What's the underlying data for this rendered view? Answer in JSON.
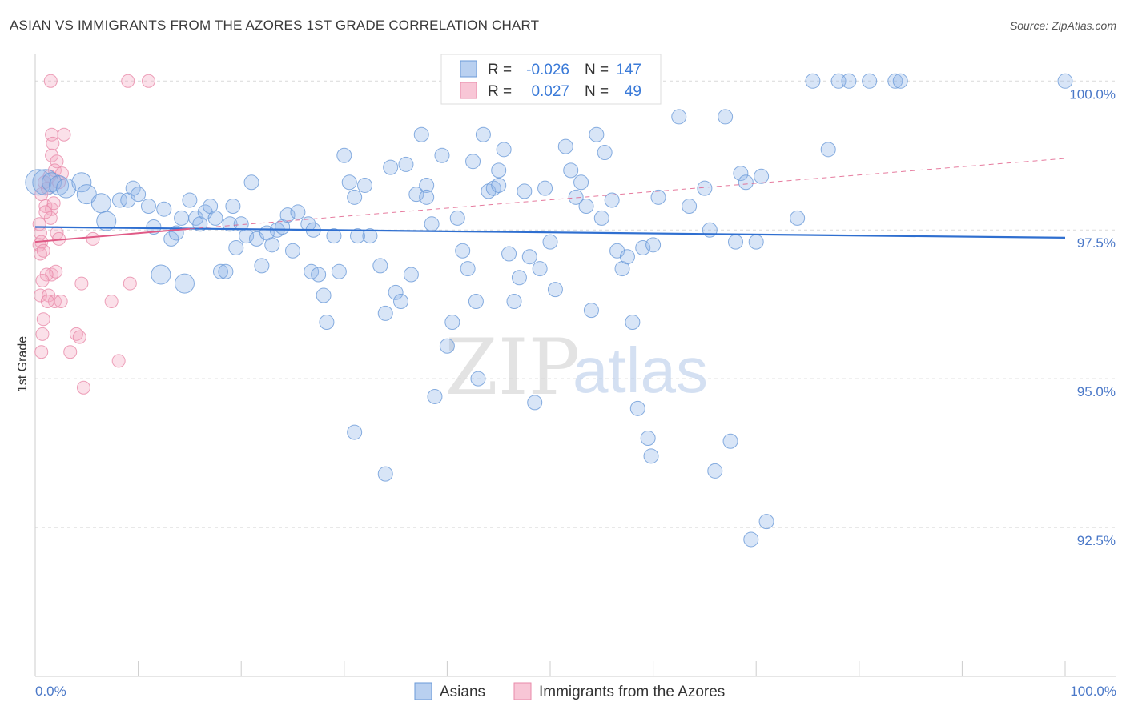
{
  "header": {
    "title": "ASIAN VS IMMIGRANTS FROM THE AZORES 1ST GRADE CORRELATION CHART",
    "source": "Source: ZipAtlas.com"
  },
  "watermark": {
    "zip": "ZIP",
    "atlas": "atlas"
  },
  "chart_data": {
    "type": "scatter",
    "title": "ASIAN VS IMMIGRANTS FROM THE AZORES 1ST GRADE CORRELATION CHART",
    "xlabel": "",
    "ylabel": "1st Grade",
    "xlim": [
      0,
      100
    ],
    "ylim": [
      90.0,
      100.3
    ],
    "x_tick_labels": {
      "left": "0.0%",
      "right": "100.0%"
    },
    "y_ticks": [
      {
        "value": 100.0,
        "label": "100.0%"
      },
      {
        "value": 97.5,
        "label": "97.5%"
      },
      {
        "value": 95.0,
        "label": "95.0%"
      },
      {
        "value": 92.5,
        "label": "92.5%"
      }
    ],
    "stats": [
      {
        "r_label": "R =",
        "r_value": "-0.026",
        "n_label": "N =",
        "n_value": "147"
      },
      {
        "r_label": "R =",
        "r_value": "0.027",
        "n_label": "N =",
        "n_value": "49"
      }
    ],
    "series": [
      {
        "name": "Asians",
        "color": "#8fb4e8",
        "stroke": "#6a9ad8",
        "trend": {
          "x": [
            0,
            100
          ],
          "y": [
            97.55,
            97.37
          ],
          "color": "#2f6fd0",
          "style": "solid"
        },
        "points": [
          [
            0.3,
            98.3,
            3
          ],
          [
            1.0,
            98.3,
            3
          ],
          [
            1.6,
            98.3,
            2
          ],
          [
            2.3,
            98.25,
            2
          ],
          [
            3.0,
            98.2,
            2
          ],
          [
            4.5,
            98.3,
            2
          ],
          [
            5.0,
            98.1,
            2
          ],
          [
            6.4,
            97.95,
            2
          ],
          [
            6.9,
            97.65,
            2
          ],
          [
            8.2,
            98.0,
            1
          ],
          [
            9.0,
            98.0,
            1
          ],
          [
            9.5,
            98.2,
            1
          ],
          [
            10.0,
            98.1,
            1
          ],
          [
            11.0,
            97.9,
            1
          ],
          [
            11.5,
            97.55,
            1
          ],
          [
            12.5,
            97.85,
            1
          ],
          [
            12.2,
            96.75,
            2
          ],
          [
            13.2,
            97.35,
            1
          ],
          [
            13.7,
            97.45,
            1
          ],
          [
            14.2,
            97.7,
            1
          ],
          [
            14.5,
            96.6,
            2
          ],
          [
            15.0,
            98.0,
            1
          ],
          [
            15.6,
            97.7,
            1
          ],
          [
            16.0,
            97.6,
            1
          ],
          [
            16.5,
            97.8,
            1
          ],
          [
            17.0,
            97.9,
            1
          ],
          [
            17.5,
            97.7,
            1
          ],
          [
            18.0,
            96.8,
            1
          ],
          [
            18.5,
            96.8,
            1
          ],
          [
            18.9,
            97.6,
            1
          ],
          [
            19.2,
            97.9,
            1
          ],
          [
            19.5,
            97.2,
            1
          ],
          [
            20.0,
            97.6,
            1
          ],
          [
            20.5,
            97.4,
            1
          ],
          [
            21.0,
            98.3,
            1
          ],
          [
            21.5,
            97.35,
            1
          ],
          [
            22.0,
            96.9,
            1
          ],
          [
            22.5,
            97.45,
            1
          ],
          [
            23.0,
            97.25,
            1
          ],
          [
            23.5,
            97.5,
            1
          ],
          [
            24.0,
            97.55,
            1
          ],
          [
            24.5,
            97.75,
            1
          ],
          [
            25.0,
            97.15,
            1
          ],
          [
            25.5,
            97.8,
            1
          ],
          [
            26.5,
            97.6,
            1
          ],
          [
            27.0,
            97.5,
            1
          ],
          [
            26.8,
            96.8,
            1
          ],
          [
            27.5,
            96.75,
            1
          ],
          [
            28.0,
            96.4,
            1
          ],
          [
            28.3,
            95.95,
            1
          ],
          [
            29.0,
            97.4,
            1
          ],
          [
            29.5,
            96.8,
            1
          ],
          [
            30.0,
            98.75,
            1
          ],
          [
            30.5,
            98.3,
            1
          ],
          [
            31.0,
            98.05,
            1
          ],
          [
            31.3,
            97.4,
            1
          ],
          [
            32.0,
            98.25,
            1
          ],
          [
            32.5,
            97.4,
            1
          ],
          [
            33.5,
            96.9,
            1
          ],
          [
            34.0,
            96.1,
            1
          ],
          [
            34.5,
            98.55,
            1
          ],
          [
            35.0,
            96.45,
            1
          ],
          [
            35.5,
            96.3,
            1
          ],
          [
            36.0,
            98.6,
            1
          ],
          [
            36.5,
            96.75,
            1
          ],
          [
            37.0,
            98.1,
            1
          ],
          [
            37.5,
            99.1,
            1
          ],
          [
            38.0,
            98.25,
            1
          ],
          [
            38.5,
            97.6,
            1
          ],
          [
            38.8,
            94.7,
            1
          ],
          [
            39.5,
            98.75,
            1
          ],
          [
            40.0,
            95.55,
            1
          ],
          [
            40.5,
            95.95,
            1
          ],
          [
            41.0,
            97.7,
            1
          ],
          [
            41.5,
            97.15,
            1
          ],
          [
            42.0,
            96.85,
            1
          ],
          [
            42.5,
            98.65,
            1
          ],
          [
            42.8,
            96.3,
            1
          ],
          [
            43.0,
            95.0,
            1
          ],
          [
            43.5,
            99.1,
            1
          ],
          [
            44.0,
            98.15,
            1
          ],
          [
            44.5,
            98.2,
            1
          ],
          [
            45.0,
            98.5,
            1
          ],
          [
            45.5,
            98.85,
            1
          ],
          [
            46.0,
            97.1,
            1
          ],
          [
            46.5,
            96.3,
            1
          ],
          [
            47.0,
            96.7,
            1
          ],
          [
            47.5,
            98.15,
            1
          ],
          [
            48.0,
            97.05,
            1
          ],
          [
            48.5,
            94.6,
            1
          ],
          [
            49.0,
            96.85,
            1
          ],
          [
            49.5,
            98.2,
            1
          ],
          [
            50.0,
            97.3,
            1
          ],
          [
            50.5,
            96.5,
            1
          ],
          [
            51.5,
            98.9,
            1
          ],
          [
            52.0,
            98.5,
            1
          ],
          [
            52.5,
            98.05,
            1
          ],
          [
            53.0,
            98.3,
            1
          ],
          [
            53.5,
            97.9,
            1
          ],
          [
            54.0,
            96.15,
            1
          ],
          [
            54.5,
            99.1,
            1
          ],
          [
            55.0,
            97.7,
            1
          ],
          [
            55.3,
            98.8,
            1
          ],
          [
            56.5,
            97.15,
            1
          ],
          [
            57.0,
            96.85,
            1
          ],
          [
            57.5,
            97.05,
            1
          ],
          [
            58.0,
            95.95,
            1
          ],
          [
            58.5,
            94.5,
            1
          ],
          [
            59.0,
            97.2,
            1
          ],
          [
            59.8,
            93.7,
            1
          ],
          [
            60.0,
            97.25,
            1
          ],
          [
            59.5,
            94.0,
            1
          ],
          [
            62.5,
            99.4,
            1
          ],
          [
            63.5,
            97.9,
            1
          ],
          [
            65.0,
            98.2,
            1
          ],
          [
            65.5,
            97.5,
            1
          ],
          [
            66.0,
            93.45,
            1
          ],
          [
            67.0,
            99.4,
            1
          ],
          [
            67.5,
            93.95,
            1
          ],
          [
            68.0,
            97.3,
            1
          ],
          [
            68.5,
            98.45,
            1
          ],
          [
            69.0,
            98.3,
            1
          ],
          [
            69.5,
            92.3,
            1
          ],
          [
            70.0,
            97.3,
            1
          ],
          [
            70.5,
            98.4,
            1
          ],
          [
            71.0,
            92.6,
            1
          ],
          [
            74.0,
            97.7,
            1
          ],
          [
            77.0,
            98.85,
            1
          ],
          [
            75.5,
            100.0,
            1
          ],
          [
            78.0,
            100.0,
            1
          ],
          [
            79.0,
            100.0,
            1
          ],
          [
            81.0,
            100.0,
            1
          ],
          [
            83.5,
            100.0,
            1
          ],
          [
            84.0,
            100.0,
            1
          ],
          [
            100.0,
            100.0,
            1
          ],
          [
            31.0,
            94.1,
            1
          ],
          [
            34.0,
            93.4,
            1
          ],
          [
            45.0,
            98.25,
            1
          ],
          [
            38.0,
            98.05,
            1
          ],
          [
            56.0,
            98.0,
            1
          ],
          [
            60.5,
            98.05,
            1
          ]
        ]
      },
      {
        "name": "Immigrants from the Azores",
        "color": "#f4a7bf",
        "stroke": "#e98aa9",
        "trend": {
          "x": [
            0,
            15
          ],
          "y": [
            97.3,
            97.52
          ],
          "color": "#e05a86",
          "style": "solid",
          "extension": {
            "x": [
              15,
              100
            ],
            "y": [
              97.52,
              98.7
            ],
            "style": "dashed"
          }
        },
        "points": [
          [
            1.5,
            100.0
          ],
          [
            9.0,
            100.0
          ],
          [
            11.0,
            100.0
          ],
          [
            1.6,
            99.1
          ],
          [
            2.8,
            99.1
          ],
          [
            1.7,
            98.95
          ],
          [
            1.6,
            98.75
          ],
          [
            2.1,
            98.65
          ],
          [
            1.9,
            98.5
          ],
          [
            1.4,
            98.4
          ],
          [
            2.3,
            98.3
          ],
          [
            2.6,
            98.45
          ],
          [
            0.9,
            98.3
          ],
          [
            0.6,
            98.1
          ],
          [
            1.2,
            98.2
          ],
          [
            1.0,
            97.9
          ],
          [
            1.6,
            97.85
          ],
          [
            1.5,
            97.7
          ],
          [
            1.0,
            97.8
          ],
          [
            1.8,
            97.95
          ],
          [
            0.4,
            97.6
          ],
          [
            0.5,
            97.45
          ],
          [
            2.1,
            97.45
          ],
          [
            2.3,
            97.35
          ],
          [
            5.6,
            97.35
          ],
          [
            0.6,
            97.3
          ],
          [
            0.4,
            97.25
          ],
          [
            0.5,
            97.1
          ],
          [
            0.8,
            97.15
          ],
          [
            1.6,
            96.75
          ],
          [
            2.0,
            96.8
          ],
          [
            1.1,
            96.75
          ],
          [
            4.5,
            96.6
          ],
          [
            9.2,
            96.6
          ],
          [
            0.7,
            96.65
          ],
          [
            0.5,
            96.4
          ],
          [
            1.3,
            96.4
          ],
          [
            1.9,
            96.3
          ],
          [
            2.5,
            96.3
          ],
          [
            1.2,
            96.3
          ],
          [
            7.4,
            96.3
          ],
          [
            0.8,
            96.0
          ],
          [
            0.7,
            95.75
          ],
          [
            4.0,
            95.75
          ],
          [
            4.3,
            95.7
          ],
          [
            0.6,
            95.45
          ],
          [
            3.4,
            95.45
          ],
          [
            8.1,
            95.3
          ],
          [
            4.7,
            94.85
          ]
        ]
      }
    ],
    "legend": [
      "Asians",
      "Immigrants from the Azores"
    ]
  }
}
